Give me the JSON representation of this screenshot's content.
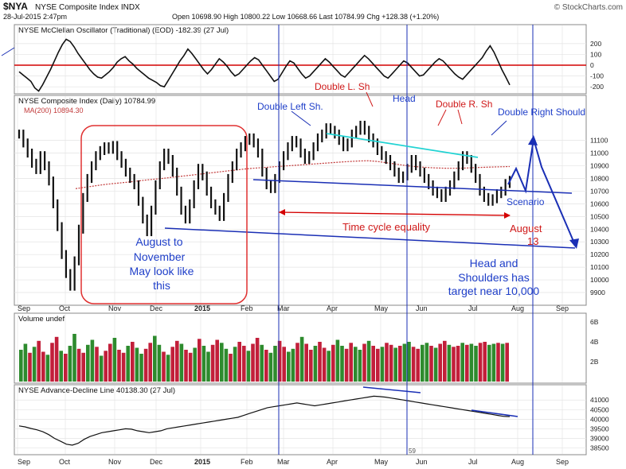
{
  "header": {
    "symbol": "$NYA",
    "name": "NYSE Composite Index INDX",
    "date": "28-Jul-2015 2:47pm",
    "ohlc": "Open 10698.90  High 10800.22  Low 10668.66  Last 10784.99  Chg +128.38 (+1.20%)",
    "source": "© StockCharts.com",
    "brand_color": "#2a6fba"
  },
  "chart_data": [
    {
      "type": "line",
      "title": "NYSE McClellan Oscillator (Traditional) (EOD) -182.39 (27 Jul)",
      "ylim": [
        -250,
        280
      ],
      "ticks": [
        200,
        100,
        0,
        -100,
        -200
      ],
      "zero_line_color": "#d40000",
      "series": [
        {
          "values": [
            -60,
            -90,
            -120,
            -150,
            -210,
            -240,
            -180,
            -110,
            -40,
            40,
            120,
            190,
            240,
            220,
            170,
            110,
            60,
            10,
            -40,
            -80,
            -110,
            -120,
            -90,
            -60,
            -20,
            30,
            60,
            80,
            40,
            10,
            -30,
            -60,
            -90,
            -120,
            -140,
            -160,
            -190,
            -200,
            -140,
            -80,
            -20,
            40,
            90,
            150,
            110,
            60,
            10,
            -40,
            -80,
            -40,
            10,
            60,
            30,
            -10,
            -60,
            -100,
            -80,
            -40,
            0,
            40,
            70,
            50,
            0,
            -50,
            -100,
            -150,
            -130,
            -70,
            -10,
            40,
            20,
            -30,
            -80,
            -120,
            -100,
            -60,
            -20,
            20,
            60,
            30,
            -10,
            -50,
            -90,
            -110,
            -70,
            -30,
            10,
            50,
            90,
            60,
            20,
            -20,
            -60,
            -100,
            -120,
            -80,
            -40,
            0,
            40,
            20,
            -20,
            -60,
            -100,
            -90,
            -50,
            -10,
            30,
            60,
            40,
            0,
            -40,
            -80,
            -110,
            -130,
            -90,
            -50,
            -10,
            30,
            70,
            130,
            180,
            120,
            40,
            -40,
            -110,
            -182
          ]
        }
      ]
    },
    {
      "type": "line",
      "title": "NYSE Composite Index (Daily) 10784.99",
      "ma_label": "MA(200) 10894.30",
      "ylim": [
        9850,
        11380
      ],
      "ticks": [
        11100,
        11000,
        10900,
        10800,
        10700,
        10600,
        10500,
        10400,
        10300,
        10200,
        10100,
        10000,
        9900
      ],
      "x_ticks": [
        "Sep",
        "Oct",
        "Nov",
        "Dec",
        "2015",
        "Feb",
        "Mar",
        "Apr",
        "May",
        "Jun",
        "Jul",
        "Aug",
        "Sep"
      ],
      "series": [
        {
          "values": [
            11150,
            11080,
            11000,
            10920,
            10870,
            10980,
            10900,
            10780,
            10600,
            10420,
            10200,
            10050,
            9950,
            10150,
            10400,
            10650,
            10800,
            10900,
            10980,
            11020,
            11050,
            11030,
            11060,
            10980,
            10920,
            10850,
            10800,
            10750,
            10620,
            10480,
            10380,
            10550,
            10750,
            10900,
            11000,
            10950,
            10850,
            10700,
            10550,
            10480,
            10600,
            10750,
            10880,
            10820,
            10700,
            10600,
            10550,
            10500,
            10650,
            10800,
            10900,
            11000,
            11050,
            11100,
            11120,
            11080,
            11000,
            10850,
            10750,
            10720,
            10800,
            10900,
            10980,
            11050,
            11100,
            11080,
            11000,
            10950,
            10980,
            11050,
            11120,
            11150,
            11200,
            11180,
            11150,
            11100,
            11050,
            11080,
            11150,
            11180,
            11220,
            11180,
            11120,
            11080,
            11020,
            10980,
            10950,
            10900,
            10850,
            10800,
            10820,
            10880,
            10950,
            10900,
            10850,
            10800,
            10750,
            10700,
            10680,
            10650,
            10700,
            10750,
            10820,
            10900,
            10980,
            10950,
            10880,
            10800,
            10700,
            10650,
            10620,
            10640,
            10680,
            10700,
            10760,
            10785
          ]
        },
        {
          "values": [
            10720,
            10730,
            10740,
            10750,
            10758,
            10765,
            10772,
            10780,
            10788,
            10795,
            10802,
            10810,
            10818,
            10826,
            10834,
            10842,
            10850,
            10858,
            10866,
            10874,
            10880,
            10885,
            10890,
            10895,
            10900,
            10905,
            10910,
            10915,
            10920,
            10925,
            10930,
            10934,
            10938,
            10940,
            10935,
            10925,
            10915,
            10905,
            10895,
            10890,
            10885,
            10882,
            10880,
            10880,
            10882,
            10885,
            10888,
            10890,
            10892,
            10894
          ]
        }
      ],
      "annotations": [
        "Double Left Sh.",
        "Double L. Sh",
        "Head",
        "Double R. Sh",
        "Double Right Should",
        "Scenario",
        "Time cycle equality",
        "August",
        "13",
        "August to",
        "November",
        "May look like",
        "this",
        "Head and",
        "Shoulders has",
        "target near 10,000"
      ]
    },
    {
      "type": "bar",
      "title": "Volume undef",
      "ticks": [
        "6B",
        "4B",
        "2B"
      ],
      "up_color": "#2e8b2e",
      "down_color": "#c21f3a",
      "ylim": [
        0,
        6
      ],
      "series": [
        {
          "values": [
            3.2,
            3.8,
            2.9,
            3.5,
            4.1,
            3.0,
            2.7,
            3.9,
            4.5,
            3.1,
            2.8,
            3.6,
            4.8,
            3.3,
            2.9,
            3.7,
            4.2,
            3.5,
            2.6,
            3.1,
            3.8,
            4.4,
            3.2,
            2.9,
            3.6,
            4.0,
            3.4,
            2.8,
            3.3,
            3.9,
            4.6,
            3.7,
            3.0,
            2.7,
            3.5,
            4.1,
            3.8,
            3.2,
            2.9,
            3.4,
            4.3,
            3.6,
            3.0,
            3.7,
            4.2,
            3.9,
            3.3,
            2.8,
            3.5,
            4.0,
            3.6,
            3.1,
            3.8,
            4.4,
            3.7,
            3.2,
            2.9,
            3.6,
            4.1,
            3.5,
            3.0,
            3.3,
            3.9,
            4.5,
            3.8,
            3.2,
            3.6,
            4.0,
            3.4,
            3.1,
            3.7,
            4.2,
            3.6,
            3.3,
            3.9,
            3.5,
            3.2,
            3.8,
            4.1,
            3.6,
            3.3,
            3.5,
            3.9,
            3.7,
            3.4,
            3.6,
            3.8,
            4.0,
            3.5,
            3.3,
            3.7,
            3.9,
            3.6,
            3.4,
            3.8,
            4.1,
            3.7,
            3.5,
            3.6,
            3.9,
            3.7,
            3.8,
            3.6,
            3.9,
            4.0,
            3.7,
            3.8,
            3.9,
            3.8,
            3.9
          ]
        }
      ]
    },
    {
      "type": "line",
      "title": "NYSE Advance-Decline Line 40138.30 (27 Jul)",
      "ylim": [
        38400,
        41300
      ],
      "ticks": [
        41000,
        40500,
        40000,
        39500,
        39000,
        38500
      ],
      "x_ticks": [
        "Sep",
        "Oct",
        "Nov",
        "Dec",
        "2015",
        "Feb",
        "Mar",
        "Apr",
        "May",
        "Jun",
        "Jul",
        "Aug",
        "Sep"
      ],
      "series": [
        {
          "values": [
            39650,
            39600,
            39520,
            39450,
            39350,
            39200,
            39000,
            38850,
            38700,
            38650,
            38750,
            38950,
            39100,
            39200,
            39300,
            39350,
            39400,
            39450,
            39500,
            39480,
            39400,
            39350,
            39300,
            39350,
            39400,
            39500,
            39550,
            39600,
            39650,
            39700,
            39750,
            39800,
            39850,
            39900,
            39950,
            40000,
            40050,
            40100,
            40200,
            40300,
            40400,
            40500,
            40600,
            40650,
            40700,
            40750,
            40800,
            40850,
            40800,
            40750,
            40700,
            40750,
            40800,
            40850,
            40900,
            40950,
            41000,
            41050,
            41100,
            41150,
            41200,
            41180,
            41150,
            41100,
            41050,
            41000,
            40950,
            40900,
            40850,
            40800,
            40750,
            40700,
            40650,
            40600,
            40550,
            40500,
            40450,
            40400,
            40350,
            40300,
            40250,
            40200,
            40150,
            40138
          ]
        }
      ],
      "marker": "59"
    }
  ],
  "colors": {
    "price": "#111111",
    "ma": "#c23a3a",
    "trendline": "#1a2fb5",
    "neckline": "#22d3d3",
    "time_cycle": "#d40000",
    "annotation_blue": "#1f3fc9",
    "annotation_red": "#d01a1a",
    "box": "#e03030"
  }
}
